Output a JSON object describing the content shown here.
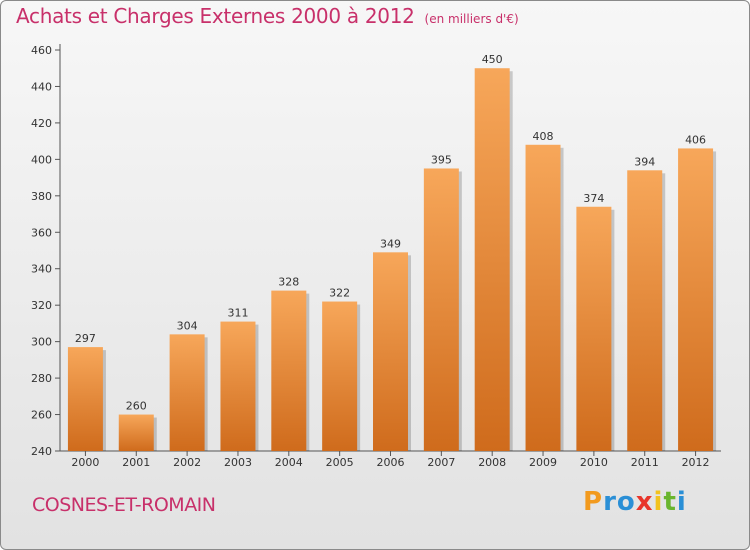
{
  "title": "Achats et Charges Externes 2000 à 2012",
  "unit_label": "(en milliers d'€)",
  "commune": "COSNES-ET-ROMAIN",
  "logo": {
    "letters": [
      "P",
      "r",
      "o",
      "x",
      "i",
      "t",
      "i"
    ],
    "colors": [
      "#f29a1e",
      "#2a8fd6",
      "#2a8fd6",
      "#e8352b",
      "#f2c21e",
      "#6ab52d",
      "#2a8fd6"
    ]
  },
  "colors": {
    "title": "#c8306a",
    "bar_light": "#f7a75a",
    "bar_dark": "#cf6b1c",
    "axis": "#555555"
  },
  "chart_data": {
    "type": "bar",
    "categories": [
      "2000",
      "2001",
      "2002",
      "2003",
      "2004",
      "2005",
      "2006",
      "2007",
      "2008",
      "2009",
      "2010",
      "2011",
      "2012"
    ],
    "values": [
      297,
      260,
      304,
      311,
      328,
      322,
      349,
      395,
      450,
      408,
      374,
      394,
      406
    ],
    "data_labels": [
      "297",
      "260",
      "304",
      "311",
      "328",
      "322",
      "349",
      "395",
      "450",
      "408",
      "374",
      "394",
      "406"
    ],
    "yticks": [
      240,
      260,
      280,
      300,
      320,
      340,
      360,
      380,
      400,
      420,
      440,
      460
    ],
    "ylim": [
      240,
      460
    ],
    "grid": false,
    "legend": "none"
  }
}
